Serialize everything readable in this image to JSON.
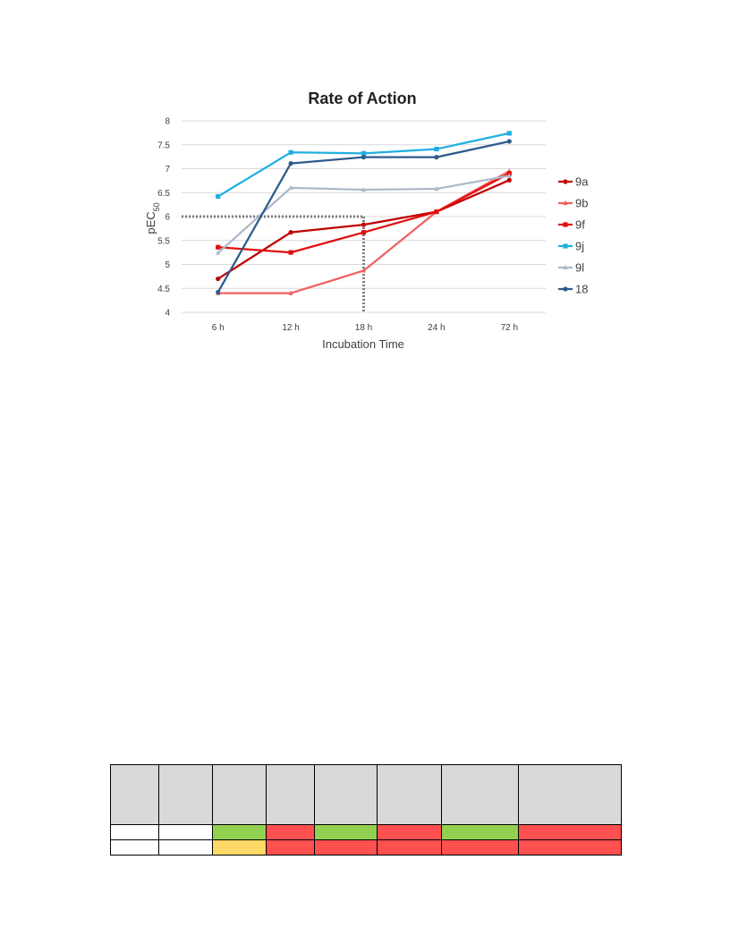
{
  "chart_data": {
    "type": "line",
    "title": "Rate of Action",
    "xlabel": "Incubation Time",
    "ylabel": "pEC50",
    "ylabel_main": "pEC",
    "ylabel_sub": "50",
    "categories": [
      "6 h",
      "12 h",
      "18 h",
      "24 h",
      "72 h"
    ],
    "ylim": [
      4,
      8
    ],
    "yticks": [
      "4",
      "4.5",
      "5",
      "5.5",
      "6",
      "6.5",
      "7",
      "7.5",
      "8"
    ],
    "grid": true,
    "legend_position": "right",
    "series": [
      {
        "name": "9a",
        "color": "#c00000",
        "marker": "circle",
        "values": [
          4.7,
          5.67,
          5.83,
          6.1,
          6.76
        ]
      },
      {
        "name": "9b",
        "color": "#f06060",
        "marker": "triangle",
        "values": [
          4.4,
          4.4,
          4.87,
          6.1,
          6.95
        ]
      },
      {
        "name": "9f",
        "color": "#e01010",
        "marker": "square",
        "values": [
          5.36,
          5.25,
          5.67,
          6.1,
          6.9
        ]
      },
      {
        "name": "9j",
        "color": "#1fb0e0",
        "marker": "square",
        "values": [
          6.42,
          7.34,
          7.32,
          7.41,
          7.74
        ]
      },
      {
        "name": "9l",
        "color": "#adb9ca",
        "marker": "triangle",
        "values": [
          5.24,
          6.6,
          6.56,
          6.58,
          6.85
        ]
      },
      {
        "name": "18",
        "color": "#2e5b8a",
        "marker": "circle",
        "values": [
          4.42,
          7.11,
          7.24,
          7.24,
          7.57
        ]
      }
    ],
    "annotation": {
      "type": "dotted-reference",
      "y_value": 6,
      "x_category": "18 h",
      "color": "#7f7f7f"
    }
  },
  "table": {
    "colors": {
      "header": "#d9d9d9",
      "green": "#92d050",
      "red": "#ff5050",
      "yellow": "#ffd966",
      "white": "#ffffff"
    },
    "rows": [
      [
        "white",
        "white",
        "green",
        "red",
        "green",
        "red",
        "green",
        "red"
      ],
      [
        "white",
        "white",
        "yellow",
        "red",
        "red",
        "red",
        "red",
        "red"
      ]
    ]
  }
}
